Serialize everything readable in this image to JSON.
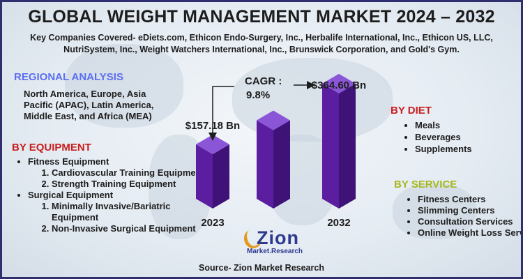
{
  "title": "GLOBAL WEIGHT MANAGEMENT MARKET 2024 – 2032",
  "subtitle": "Key Companies Covered- eDiets.com, Ethicon Endo-Surgery, Inc., Herbalife International, Inc., Ethicon US, LLC, NutriSystem, Inc., Weight Watchers International, Inc., Brunswick Corporation, and Gold's Gym.",
  "regional": {
    "heading": "REGIONAL ANALYSIS",
    "text": "North America, Europe, Asia Pacific (APAC), Latin America, Middle East, and Africa (MEA)"
  },
  "equipment": {
    "heading": "BY EQUIPMENT",
    "fitness": "Fitness Equipment",
    "fitness_sub": [
      "Cardiovascular Training Equipment",
      "Strength Training Equipment"
    ],
    "surgical": "Surgical Equipment",
    "surgical_sub": [
      "Minimally Invasive/Bariatric Equipment",
      "Non-Invasive Surgical Equipment"
    ]
  },
  "diet": {
    "heading": "BY DIET",
    "items": [
      "Meals",
      "Beverages",
      "Supplements"
    ]
  },
  "service": {
    "heading": "BY SERVICE",
    "items": [
      "Fitness Centers",
      "Slimming Centers",
      "Consultation Services",
      "Online Weight Loss Services"
    ]
  },
  "chart_data": {
    "type": "bar",
    "categories": [
      "2023",
      "",
      "2032"
    ],
    "values": [
      157.18,
      null,
      364.6
    ],
    "value_labels": [
      "$157.18 Bn",
      "",
      "$364.60 Bn"
    ],
    "cagr_label": "CAGR :",
    "cagr_value": "9.8%",
    "bar_color": "#5b1ea0"
  },
  "logo": {
    "main": "Zion",
    "sub": "Market.Research"
  },
  "source": "Source- Zion Market Research"
}
